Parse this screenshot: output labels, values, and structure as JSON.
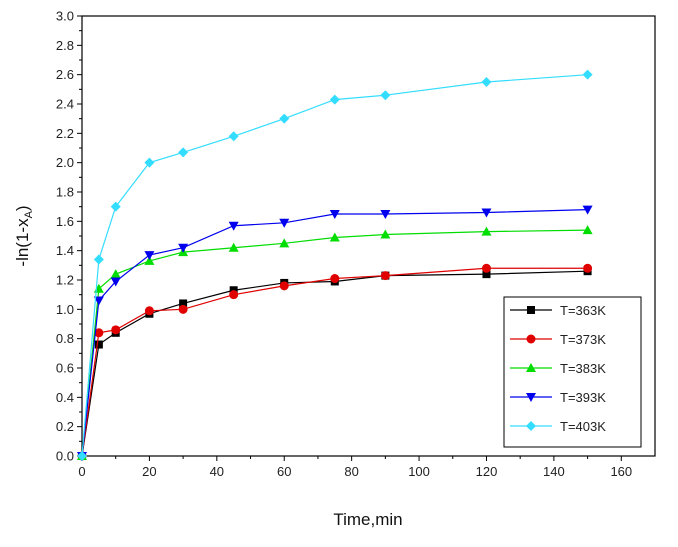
{
  "chart_data": {
    "type": "line",
    "title": "",
    "xlabel": "Time,min",
    "ylabel_main": "-ln(1-x",
    "ylabel_sub": "A",
    "ylabel_close": ")",
    "xlim": [
      0,
      170
    ],
    "ylim": [
      0.0,
      3.0
    ],
    "x_ticks": [
      "0",
      "20",
      "40",
      "60",
      "80",
      "100",
      "120",
      "140",
      "160"
    ],
    "y_ticks": [
      "0.0",
      "0.2",
      "0.4",
      "0.6",
      "0.8",
      "1.0",
      "1.2",
      "1.4",
      "1.6",
      "1.8",
      "2.0",
      "2.2",
      "2.4",
      "2.6",
      "2.8",
      "3.0"
    ],
    "grid": false,
    "legend_position": "bottom-right",
    "x": [
      0,
      5,
      10,
      20,
      30,
      45,
      60,
      75,
      90,
      120,
      150
    ],
    "series": [
      {
        "name": "T=363K",
        "color": "#000000",
        "marker": "square",
        "values": [
          0.0,
          0.76,
          0.84,
          0.97,
          1.04,
          1.13,
          1.18,
          1.19,
          1.23,
          1.24,
          1.26
        ]
      },
      {
        "name": "T=373K",
        "color": "#e00000",
        "marker": "circle",
        "values": [
          0.0,
          0.84,
          0.86,
          0.99,
          1.0,
          1.1,
          1.16,
          1.21,
          1.23,
          1.28,
          1.28
        ]
      },
      {
        "name": "T=383K",
        "color": "#00dd00",
        "marker": "triangle-up",
        "values": [
          0.0,
          1.14,
          1.24,
          1.33,
          1.39,
          1.42,
          1.45,
          1.49,
          1.51,
          1.53,
          1.54
        ]
      },
      {
        "name": "T=393K",
        "color": "#0000ee",
        "marker": "triangle-down",
        "values": [
          0.0,
          1.06,
          1.19,
          1.37,
          1.42,
          1.57,
          1.59,
          1.65,
          1.65,
          1.66,
          1.68
        ]
      },
      {
        "name": "T=403K",
        "color": "#33ddff",
        "marker": "diamond",
        "values": [
          0.0,
          1.34,
          1.7,
          2.0,
          2.07,
          2.18,
          2.3,
          2.43,
          2.46,
          2.55,
          2.6
        ]
      }
    ]
  }
}
